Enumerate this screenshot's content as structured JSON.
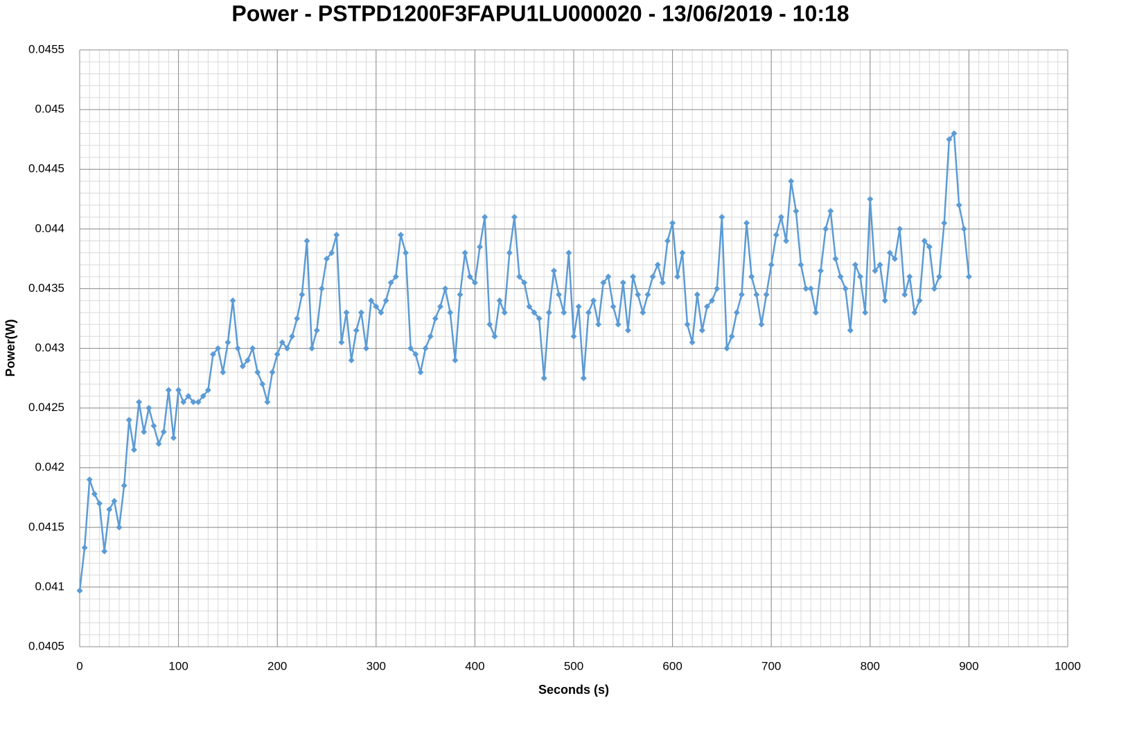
{
  "chart_data": {
    "type": "line",
    "title": "Power - PSTPD1200F3FAPU1LU000020 - 13/06/2019 - 10:18",
    "x_label": "Seconds (s)",
    "y_label": "Power(W)",
    "xlim": [
      0,
      1000
    ],
    "xticks": [
      0,
      100,
      200,
      300,
      400,
      500,
      600,
      700,
      800,
      900,
      1000
    ],
    "ylim": [
      0.0405,
      0.0455
    ],
    "yticks": [
      0.0405,
      0.041,
      0.0415,
      0.042,
      0.0425,
      0.043,
      0.0435,
      0.044,
      0.0445,
      0.045,
      0.0455
    ],
    "grid": true,
    "minor_grid": true,
    "marker": "diamond",
    "x": [
      0,
      5,
      10,
      15,
      20,
      25,
      30,
      35,
      40,
      45,
      50,
      55,
      60,
      65,
      70,
      75,
      80,
      85,
      90,
      95,
      100,
      105,
      110,
      115,
      120,
      125,
      130,
      135,
      140,
      145,
      150,
      155,
      160,
      165,
      170,
      175,
      180,
      185,
      190,
      195,
      200,
      205,
      210,
      215,
      220,
      225,
      230,
      235,
      240,
      245,
      250,
      255,
      260,
      265,
      270,
      275,
      280,
      285,
      290,
      295,
      300,
      305,
      310,
      315,
      320,
      325,
      330,
      335,
      340,
      345,
      350,
      355,
      360,
      365,
      370,
      375,
      380,
      385,
      390,
      395,
      400,
      405,
      410,
      415,
      420,
      425,
      430,
      435,
      440,
      445,
      450,
      455,
      460,
      465,
      470,
      475,
      480,
      485,
      490,
      495,
      500,
      505,
      510,
      515,
      520,
      525,
      530,
      535,
      540,
      545,
      550,
      555,
      560,
      565,
      570,
      575,
      580,
      585,
      590,
      595,
      600,
      605,
      610,
      615,
      620,
      625,
      630,
      635,
      640,
      645,
      650,
      655,
      660,
      665,
      670,
      675,
      680,
      685,
      690,
      695,
      700,
      705,
      710,
      715,
      720,
      725,
      730,
      735,
      740,
      745,
      750,
      755,
      760,
      765,
      770,
      775,
      780,
      785,
      790,
      795,
      800,
      805,
      810,
      815,
      820,
      825,
      830,
      835,
      840,
      845,
      850,
      855,
      860,
      865,
      870,
      875,
      880,
      885,
      890,
      895,
      900
    ],
    "series": [
      {
        "name": "Power",
        "color": "#5b9bd5",
        "values": [
          0.04097,
          0.04133,
          0.0419,
          0.04178,
          0.0417,
          0.0413,
          0.04165,
          0.04172,
          0.0415,
          0.04185,
          0.0424,
          0.04215,
          0.04255,
          0.0423,
          0.0425,
          0.04235,
          0.0422,
          0.0423,
          0.04265,
          0.04225,
          0.04265,
          0.04255,
          0.0426,
          0.04255,
          0.04255,
          0.0426,
          0.04265,
          0.04295,
          0.043,
          0.0428,
          0.04305,
          0.0434,
          0.043,
          0.04285,
          0.0429,
          0.043,
          0.0428,
          0.0427,
          0.04255,
          0.0428,
          0.04295,
          0.04305,
          0.043,
          0.0431,
          0.04325,
          0.04345,
          0.0439,
          0.043,
          0.04315,
          0.0435,
          0.04375,
          0.0438,
          0.04395,
          0.04305,
          0.0433,
          0.0429,
          0.04315,
          0.0433,
          0.043,
          0.0434,
          0.04335,
          0.0433,
          0.0434,
          0.04355,
          0.0436,
          0.04395,
          0.0438,
          0.043,
          0.04295,
          0.0428,
          0.043,
          0.0431,
          0.04325,
          0.04335,
          0.0435,
          0.0433,
          0.0429,
          0.04345,
          0.0438,
          0.0436,
          0.04355,
          0.04385,
          0.0441,
          0.0432,
          0.0431,
          0.0434,
          0.0433,
          0.0438,
          0.0441,
          0.0436,
          0.04355,
          0.04335,
          0.0433,
          0.04325,
          0.04275,
          0.0433,
          0.04365,
          0.04345,
          0.0433,
          0.0438,
          0.0431,
          0.04335,
          0.04275,
          0.0433,
          0.0434,
          0.0432,
          0.04355,
          0.0436,
          0.04335,
          0.0432,
          0.04355,
          0.04315,
          0.0436,
          0.04345,
          0.0433,
          0.04345,
          0.0436,
          0.0437,
          0.04355,
          0.0439,
          0.04405,
          0.0436,
          0.0438,
          0.0432,
          0.04305,
          0.04345,
          0.04315,
          0.04335,
          0.0434,
          0.0435,
          0.0441,
          0.043,
          0.0431,
          0.0433,
          0.04345,
          0.04405,
          0.0436,
          0.04345,
          0.0432,
          0.04345,
          0.0437,
          0.04395,
          0.0441,
          0.0439,
          0.0444,
          0.04415,
          0.0437,
          0.0435,
          0.0435,
          0.0433,
          0.04365,
          0.044,
          0.04415,
          0.04375,
          0.0436,
          0.0435,
          0.04315,
          0.0437,
          0.0436,
          0.0433,
          0.04425,
          0.04365,
          0.0437,
          0.0434,
          0.0438,
          0.04375,
          0.044,
          0.04345,
          0.0436,
          0.0433,
          0.0434,
          0.0439,
          0.04385,
          0.0435,
          0.0436,
          0.04405,
          0.04475,
          0.0448,
          0.0442,
          0.044,
          0.0436
        ]
      }
    ]
  }
}
